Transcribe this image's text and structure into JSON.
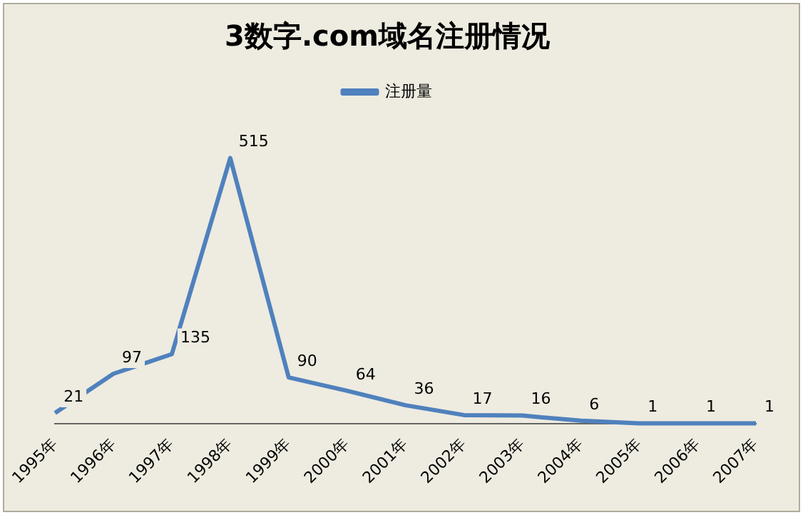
{
  "chart_data": {
    "type": "line",
    "title": "3数字.com域名注册情况",
    "categories": [
      "1995年",
      "1996年",
      "1997年",
      "1998年",
      "1999年",
      "2000年",
      "2001年",
      "2002年",
      "2003年",
      "2004年",
      "2005年",
      "2006年",
      "2007年"
    ],
    "series": [
      {
        "name": "注册量",
        "color": "#4f81bd",
        "values": [
          21,
          97,
          135,
          515,
          90,
          64,
          36,
          17,
          16,
          6,
          1,
          1,
          1
        ]
      }
    ],
    "data_labels": true,
    "legend": "top",
    "grid": false,
    "marker": "none",
    "tick_labels": "x"
  }
}
